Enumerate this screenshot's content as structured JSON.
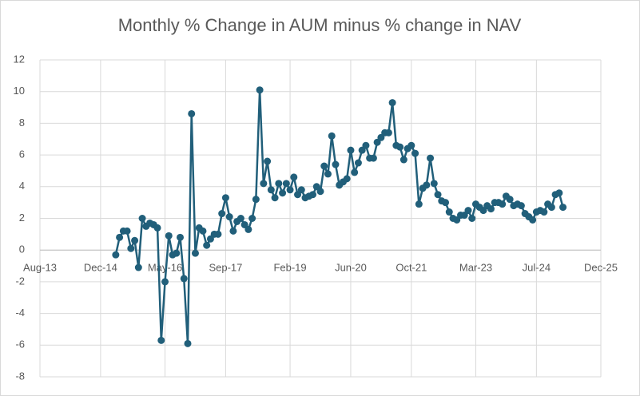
{
  "chart_data": {
    "type": "line",
    "title": "Monthly % Change in AUM minus % change in NAV",
    "x": [
      "2015-04",
      "2015-05",
      "2015-06",
      "2015-07",
      "2015-08",
      "2015-09",
      "2015-10",
      "2015-11",
      "2015-12",
      "2016-01",
      "2016-02",
      "2016-03",
      "2016-04",
      "2016-05",
      "2016-06",
      "2016-07",
      "2016-08",
      "2016-09",
      "2016-10",
      "2016-11",
      "2016-12",
      "2017-01",
      "2017-02",
      "2017-03",
      "2017-04",
      "2017-05",
      "2017-06",
      "2017-07",
      "2017-08",
      "2017-09",
      "2017-10",
      "2017-11",
      "2017-12",
      "2018-01",
      "2018-02",
      "2018-03",
      "2018-04",
      "2018-05",
      "2018-06",
      "2018-07",
      "2018-08",
      "2018-09",
      "2018-10",
      "2018-11",
      "2018-12",
      "2019-01",
      "2019-02",
      "2019-03",
      "2019-04",
      "2019-05",
      "2019-06",
      "2019-07",
      "2019-08",
      "2019-09",
      "2019-10",
      "2019-11",
      "2019-12",
      "2020-01",
      "2020-02",
      "2020-03",
      "2020-04",
      "2020-05",
      "2020-06",
      "2020-07",
      "2020-08",
      "2020-09",
      "2020-10",
      "2020-11",
      "2020-12",
      "2021-01",
      "2021-02",
      "2021-03",
      "2021-04",
      "2021-05",
      "2021-06",
      "2021-07",
      "2021-08",
      "2021-09",
      "2021-10",
      "2021-11",
      "2021-12",
      "2022-01",
      "2022-02",
      "2022-03",
      "2022-04",
      "2022-05",
      "2022-06",
      "2022-07",
      "2022-08",
      "2022-09",
      "2022-10",
      "2022-11",
      "2022-12",
      "2023-01",
      "2023-02",
      "2023-03",
      "2023-04",
      "2023-05",
      "2023-06",
      "2023-07",
      "2023-08",
      "2023-09",
      "2023-10",
      "2023-11",
      "2023-12",
      "2024-01",
      "2024-02",
      "2024-03",
      "2024-04",
      "2024-05",
      "2024-06",
      "2024-07",
      "2024-08",
      "2024-09",
      "2024-10",
      "2024-11",
      "2024-12",
      "2025-01",
      "2025-02"
    ],
    "values": [
      -0.3,
      0.8,
      1.2,
      1.2,
      0.1,
      0.6,
      -1.1,
      2.0,
      1.5,
      1.7,
      1.6,
      1.4,
      -5.7,
      -2.0,
      0.9,
      -0.3,
      -0.2,
      0.8,
      -1.8,
      -5.9,
      8.6,
      -0.2,
      1.4,
      1.2,
      0.3,
      0.7,
      1.0,
      1.0,
      2.3,
      3.3,
      2.1,
      1.2,
      1.8,
      2.0,
      1.6,
      1.3,
      2.0,
      3.2,
      10.1,
      4.2,
      5.6,
      3.8,
      3.3,
      4.2,
      3.6,
      4.2,
      3.8,
      4.6,
      3.5,
      3.8,
      3.3,
      3.4,
      3.5,
      4.0,
      3.7,
      5.3,
      4.8,
      7.2,
      5.4,
      4.1,
      4.3,
      4.5,
      6.3,
      4.9,
      5.5,
      6.3,
      6.6,
      5.8,
      5.8,
      6.8,
      7.1,
      7.4,
      7.4,
      9.3,
      6.6,
      6.5,
      5.7,
      6.4,
      6.6,
      6.1,
      2.9,
      3.9,
      4.1,
      5.8,
      4.2,
      3.5,
      3.1,
      3.0,
      2.4,
      2.0,
      1.9,
      2.2,
      2.2,
      2.5,
      2.0,
      2.9,
      2.7,
      2.5,
      2.8,
      2.6,
      3.0,
      3.0,
      2.9,
      3.4,
      3.2,
      2.8,
      2.9,
      2.8,
      2.3,
      2.1,
      1.9,
      2.4,
      2.5,
      2.4,
      2.9,
      2.7,
      3.5,
      3.6,
      2.7
    ],
    "color": "#215f7a",
    "xlim": [
      "2013-08",
      "2025-12"
    ],
    "xticks": [
      {
        "value": "2013-08",
        "label": "Aug-13"
      },
      {
        "value": "2014-12",
        "label": "Dec-14"
      },
      {
        "value": "2016-05",
        "label": "May-16"
      },
      {
        "value": "2017-09",
        "label": "Sep-17"
      },
      {
        "value": "2019-02",
        "label": "Feb-19"
      },
      {
        "value": "2020-06",
        "label": "Jun-20"
      },
      {
        "value": "2021-10",
        "label": "Oct-21"
      },
      {
        "value": "2023-03",
        "label": "Mar-23"
      },
      {
        "value": "2024-07",
        "label": "Jul-24"
      },
      {
        "value": "2025-12",
        "label": "Dec-25"
      }
    ],
    "ylim": [
      -8,
      12
    ],
    "yticks": [
      -8,
      -6,
      -4,
      -2,
      0,
      2,
      4,
      6,
      8,
      10,
      12
    ],
    "grid": true
  }
}
